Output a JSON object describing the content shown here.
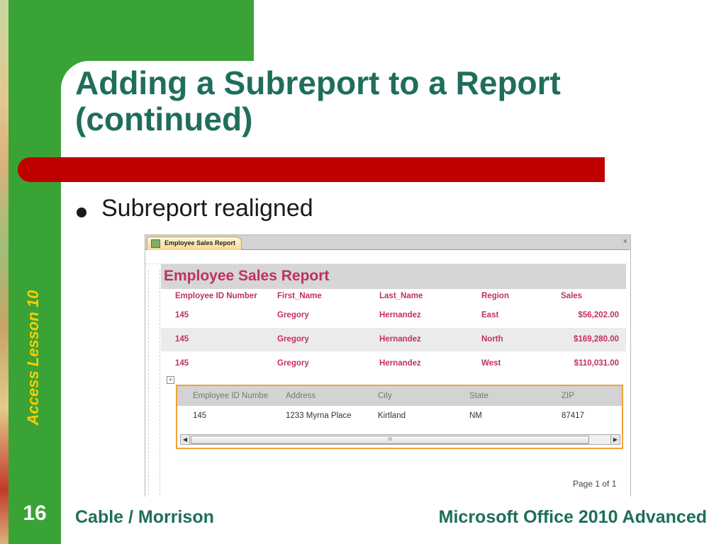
{
  "slide": {
    "title": "Adding a Subreport to a Report (continued)",
    "bullet": "Subreport realigned",
    "side_label": "Access Lesson 10",
    "number": "16",
    "footer_left": "Cable / Morrison",
    "footer_right": "Microsoft Office 2010 Advanced",
    "colors": {
      "green": "#3aa335",
      "title": "#1f6e5b",
      "red_bar": "#c00000",
      "side_label": "#ffcc00"
    }
  },
  "window": {
    "tab_label": "Employee Sales Report",
    "tab_icon": "report-icon",
    "close_glyph": "×"
  },
  "report": {
    "title": "Employee Sales Report",
    "columns": [
      "Employee ID Number",
      "First_Name",
      "Last_Name",
      "Region",
      "Sales"
    ],
    "rows": [
      [
        "145",
        "Gregory",
        "Hernandez",
        "East",
        "$56,202.00"
      ],
      [
        "145",
        "Gregory",
        "Hernandez",
        "North",
        "$169,280.00"
      ],
      [
        "145",
        "Gregory",
        "Hernandez",
        "West",
        "$110,031.00"
      ]
    ],
    "accent_color": "#c0315e"
  },
  "subreport": {
    "expander_glyph": "+",
    "columns": [
      "Employee ID Numbe",
      "Address",
      "City",
      "State",
      "ZIP"
    ],
    "row": [
      "145",
      "1233 Myrna Place",
      "Kirtland",
      "NM",
      "87417"
    ],
    "scroll_left": "◀",
    "scroll_right": "▶",
    "scroll_thumb": "III"
  },
  "page_indicator": "Page 1 of 1"
}
